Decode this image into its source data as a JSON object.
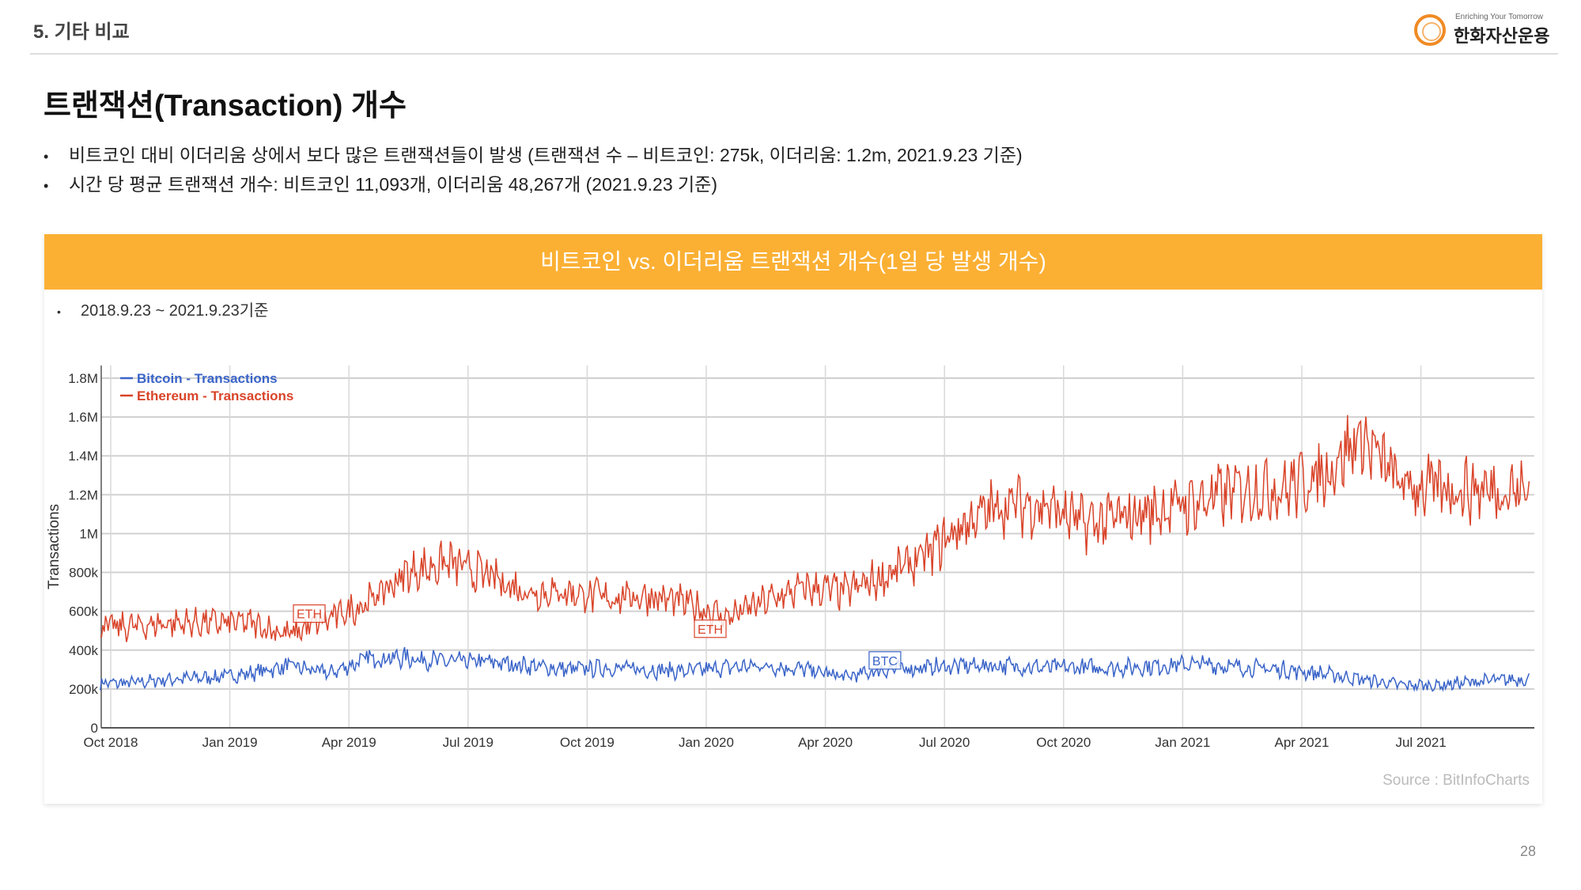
{
  "header": {
    "section": "5. 기타 비교",
    "logo_tagline": "Enriching Your Tomorrow",
    "logo_name": "한화자산운용"
  },
  "title": "트랜잭션(Transaction) 개수",
  "bullets": [
    "비트코인 대비 이더리움 상에서 보다 많은 트랜잭션들이 발생 (트랜잭션 수 – 비트코인: 275k, 이더리움:  1.2m, 2021.9.23 기준)",
    "시간 당 평균 트랜잭션 개수: 비트코인 11,093개, 이더리움 48,267개 (2021.9.23 기준)"
  ],
  "card": {
    "banner": "비트코인 vs. 이더리움 트랜잭션 개수(1일 당 발생 개수)",
    "range_note": "2018.9.23 ~ 2021.9.23기준",
    "source": "Source : BitInfoCharts"
  },
  "page_number": "28",
  "chart_data": {
    "type": "line",
    "title": "",
    "xlabel": "",
    "ylabel": "Transactions",
    "ylim": [
      0,
      1800000
    ],
    "yticks": [
      0,
      200000,
      400000,
      600000,
      800000,
      1000000,
      1200000,
      1400000,
      1600000,
      1800000
    ],
    "ytick_labels": [
      "0",
      "200k",
      "400k",
      "600k",
      "800k",
      "1M",
      "1.2M",
      "1.4M",
      "1.6M",
      "1.8M"
    ],
    "xtick_labels": [
      "Oct 2018",
      "Jan 2019",
      "Apr 2019",
      "Jul 2019",
      "Oct 2019",
      "Jan 2020",
      "Apr 2020",
      "Jul 2020",
      "Oct 2020",
      "Jan 2021",
      "Apr 2021",
      "Jul 2021"
    ],
    "x_start": "2018-09-23",
    "x_end": "2021-09-23",
    "x_monthly": [
      "2018-10",
      "2018-11",
      "2018-12",
      "2019-01",
      "2019-02",
      "2019-03",
      "2019-04",
      "2019-05",
      "2019-06",
      "2019-07",
      "2019-08",
      "2019-09",
      "2019-10",
      "2019-11",
      "2019-12",
      "2020-01",
      "2020-02",
      "2020-03",
      "2020-04",
      "2020-05",
      "2020-06",
      "2020-07",
      "2020-08",
      "2020-09",
      "2020-10",
      "2020-11",
      "2020-12",
      "2021-01",
      "2021-02",
      "2021-03",
      "2021-04",
      "2021-05",
      "2021-06",
      "2021-07",
      "2021-08",
      "2021-09"
    ],
    "grid": true,
    "legend": "top-left",
    "series": [
      {
        "name": "Bitcoin - Transactions",
        "color": "#3a64c8",
        "values": [
          230000,
          250000,
          260000,
          280000,
          320000,
          280000,
          360000,
          360000,
          340000,
          340000,
          320000,
          300000,
          310000,
          300000,
          290000,
          310000,
          320000,
          300000,
          260000,
          300000,
          310000,
          320000,
          320000,
          310000,
          310000,
          310000,
          320000,
          330000,
          310000,
          300000,
          280000,
          250000,
          220000,
          220000,
          240000,
          250000
        ]
      },
      {
        "name": "Ethereum - Transactions",
        "color": "#d9442a",
        "values": [
          520000,
          540000,
          540000,
          540000,
          480000,
          560000,
          650000,
          800000,
          850000,
          780000,
          700000,
          700000,
          670000,
          680000,
          640000,
          570000,
          650000,
          720000,
          700000,
          780000,
          880000,
          1050000,
          1150000,
          1150000,
          1050000,
          1080000,
          1130000,
          1170000,
          1230000,
          1230000,
          1300000,
          1500000,
          1250000,
          1230000,
          1230000,
          1220000
        ]
      }
    ],
    "annotations": [
      {
        "text": "ETH",
        "series": "Ethereum - Transactions",
        "month": 5.0,
        "value": 588000
      },
      {
        "text": "ETH",
        "series": "Ethereum - Transactions",
        "month": 15.1,
        "value": 510000
      },
      {
        "text": "BTC",
        "series": "Bitcoin - Transactions",
        "month": 19.5,
        "value": 347000
      }
    ]
  }
}
